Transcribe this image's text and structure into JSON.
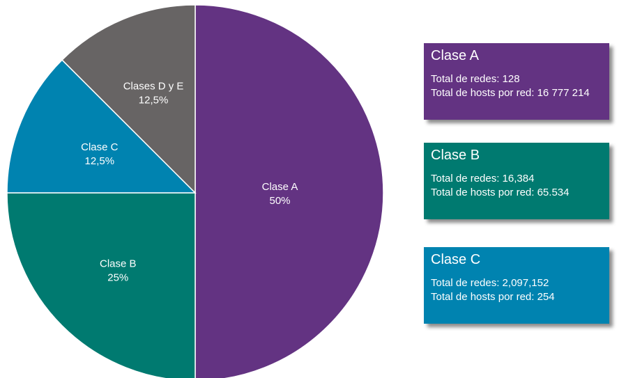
{
  "chart_data": {
    "type": "pie",
    "title": "",
    "slices": [
      {
        "label": "Clase A",
        "value": 50,
        "display": "50%",
        "color": "#633382"
      },
      {
        "label": "Clase B",
        "value": 25,
        "display": "25%",
        "color": "#007a70"
      },
      {
        "label": "Clase C",
        "value": 12.5,
        "display": "12,5%",
        "color": "#0083b0"
      },
      {
        "label": "Clases D y E",
        "value": 12.5,
        "display": "12,5%",
        "color": "#676464"
      }
    ]
  },
  "cards": [
    {
      "title": "Clase A",
      "color": "#633382",
      "lines": [
        "Total de redes: 128",
        "Total de hosts por red: 16 777 214"
      ]
    },
    {
      "title": "Clase B",
      "color": "#007a70",
      "lines": [
        "Total de redes: 16,384",
        "Total de hosts por red: 65.534"
      ]
    },
    {
      "title": "Clase C",
      "color": "#0083b0",
      "lines": [
        "Total de redes: 2,097,152",
        "Total de hosts por red: 254"
      ]
    }
  ]
}
